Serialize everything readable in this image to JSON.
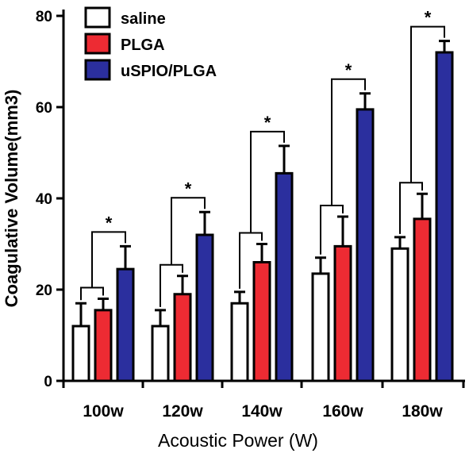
{
  "chart_data": {
    "type": "bar",
    "categories": [
      "100w",
      "120w",
      "140w",
      "160w",
      "180w"
    ],
    "series": [
      {
        "name": "saline",
        "color": "#ffffff",
        "values": [
          12,
          12,
          17,
          23.5,
          29
        ],
        "errors": [
          5,
          3.5,
          2.5,
          3.5,
          2.5
        ]
      },
      {
        "name": "PLGA",
        "color": "#ed2b33",
        "values": [
          15.5,
          19,
          26,
          29.5,
          35.5
        ],
        "errors": [
          2.5,
          4,
          4,
          6.5,
          5.5
        ]
      },
      {
        "name": "uSPIO/PLGA",
        "color": "#2b2f9e",
        "values": [
          24.5,
          32,
          45.5,
          59.5,
          72
        ],
        "errors": [
          5,
          5,
          6,
          3.5,
          2.5
        ]
      }
    ],
    "xlabel": "Acoustic Power (W)",
    "ylabel": "Coagulative Volume(mm3)",
    "ylim": [
      0,
      80
    ],
    "yticks": [
      0,
      20,
      40,
      60,
      80
    ],
    "grid": false,
    "legend": "top-left",
    "significance_marker": "*"
  }
}
